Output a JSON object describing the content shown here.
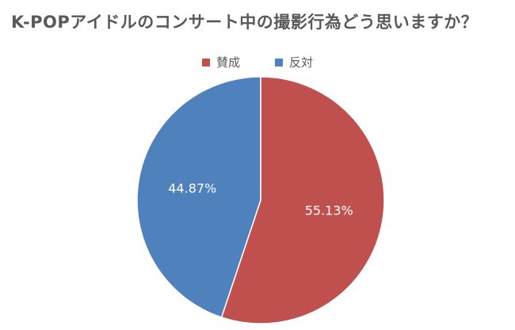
{
  "chart_data": {
    "type": "pie",
    "title": "K-POPアイドルのコンサート中の撮影行為どう思いますか？",
    "categories": [
      "賛成",
      "反対"
    ],
    "values": [
      55.13,
      44.87
    ],
    "value_labels": [
      "55.13%",
      "44.87%"
    ],
    "colors": [
      "#C0504D",
      "#4F81BD"
    ],
    "legend_position": "top"
  }
}
